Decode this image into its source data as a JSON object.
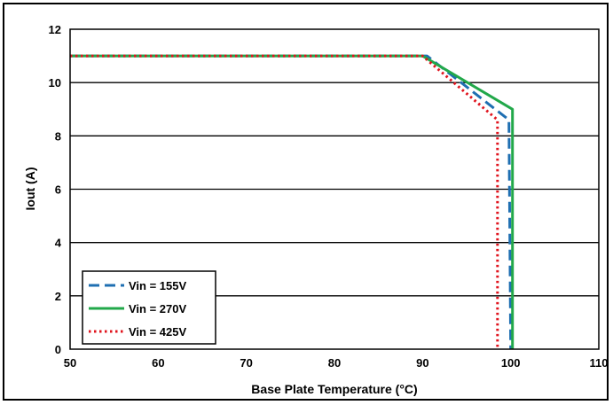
{
  "chart_data": {
    "type": "line",
    "xlabel": "Base Plate Temperature (°C)",
    "ylabel": "Iout (A)",
    "xlim": [
      50,
      110
    ],
    "ylim": [
      0,
      12
    ],
    "x_ticks": [
      "50",
      "60",
      "70",
      "80",
      "90",
      "100",
      "110"
    ],
    "y_ticks": [
      "0",
      "2",
      "4",
      "6",
      "8",
      "10",
      "12"
    ],
    "grid": "horizontal",
    "legend_position": "bottom-left",
    "series": [
      {
        "name": "Vin = 155V",
        "color": "#1f6fb2",
        "style": "dashed",
        "points": [
          [
            50,
            11
          ],
          [
            90.5,
            11
          ],
          [
            99.8,
            8.6
          ],
          [
            100,
            0
          ]
        ]
      },
      {
        "name": "Vin = 270V",
        "color": "#22a84a",
        "style": "solid",
        "points": [
          [
            50,
            11
          ],
          [
            90,
            11
          ],
          [
            100.2,
            9
          ],
          [
            100.2,
            0
          ]
        ]
      },
      {
        "name": "Vin = 425V",
        "color": "#e0141e",
        "style": "dotted",
        "points": [
          [
            50,
            11
          ],
          [
            90,
            11
          ],
          [
            98.5,
            8.6
          ],
          [
            98.5,
            0
          ]
        ]
      }
    ]
  }
}
